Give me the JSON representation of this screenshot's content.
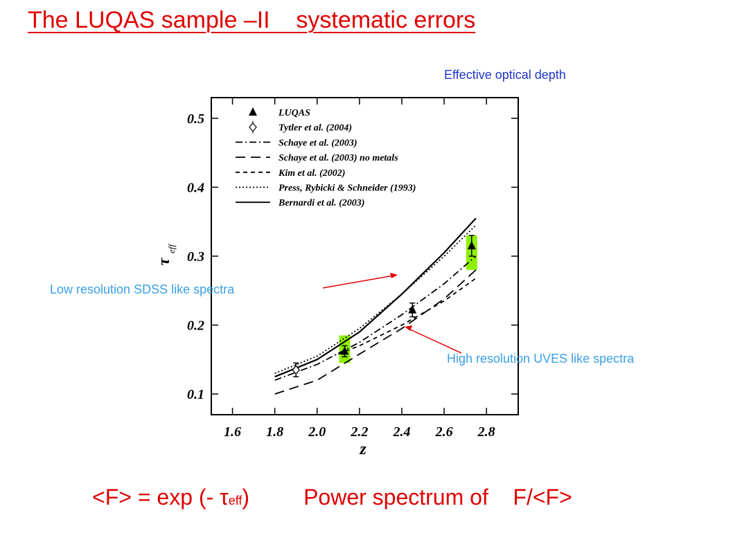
{
  "header": {
    "title": "The LUQAS sample –II    systematic errors"
  },
  "annotations": {
    "effective_depth": "Effective optical depth",
    "low_res": "Low resolution SDSS like spectra",
    "high_res": "High resolution UVES like spectra"
  },
  "footer": {
    "formula_part1": "<F> = exp (- ",
    "tau": "τ",
    "sub_eff": "eff",
    "formula_part2": ")",
    "power_spectrum": "Power spectrum of    F/<F>"
  },
  "colors": {
    "title_red": "#e00000",
    "blue_label": "#1f35c8",
    "cyan_label": "#3aa0e8",
    "highlight_green": "#8ef000",
    "arrow_red": "#e00000"
  },
  "chart_data": {
    "type": "line",
    "xlabel": "z",
    "ylabel": "τ_eff",
    "xlim": [
      1.5,
      2.95
    ],
    "ylim": [
      0.07,
      0.53
    ],
    "xticks": [
      "1.6",
      "1.8",
      "2.0",
      "2.2",
      "2.4",
      "2.6",
      "2.8"
    ],
    "xtick_values": [
      1.6,
      1.8,
      2.0,
      2.2,
      2.4,
      2.6,
      2.8
    ],
    "yticks": [
      "0.1",
      "0.2",
      "0.3",
      "0.4",
      "0.5"
    ],
    "ytick_values": [
      0.1,
      0.2,
      0.3,
      0.4,
      0.5
    ],
    "legend_position": "top-left",
    "legend": [
      {
        "label": "LUQAS",
        "style": "triangle"
      },
      {
        "label": "Tytler et al. (2004)",
        "style": "diamond"
      },
      {
        "label": "Schaye et al. (2003)",
        "style": "dashdot"
      },
      {
        "label": "Schaye et al. (2003) no metals",
        "style": "longdash"
      },
      {
        "label": "Kim et al. (2002)",
        "style": "dash"
      },
      {
        "label": "Press, Rybicki & Schneider (1993)",
        "style": "dot"
      },
      {
        "label": "Bernardi et al. (2003)",
        "style": "solid"
      }
    ],
    "series": [
      {
        "name": "Bernardi et al. (2003)",
        "style": "solid",
        "x": [
          1.8,
          2.0,
          2.2,
          2.4,
          2.6,
          2.75
        ],
        "y": [
          0.125,
          0.15,
          0.19,
          0.245,
          0.305,
          0.355
        ]
      },
      {
        "name": "Press, Rybicki & Schneider (1993)",
        "style": "dot",
        "x": [
          1.8,
          2.0,
          2.2,
          2.4,
          2.6,
          2.75
        ],
        "y": [
          0.13,
          0.155,
          0.195,
          0.245,
          0.3,
          0.345
        ]
      },
      {
        "name": "Schaye et al. (2003)",
        "style": "dashdot",
        "x": [
          1.8,
          2.0,
          2.2,
          2.4,
          2.6,
          2.75
        ],
        "y": [
          0.12,
          0.143,
          0.175,
          0.215,
          0.26,
          0.3
        ]
      },
      {
        "name": "Schaye et al. (2003) no metals",
        "style": "longdash",
        "x": [
          1.8,
          2.0,
          2.2,
          2.4,
          2.6,
          2.75
        ],
        "y": [
          0.1,
          0.12,
          0.158,
          0.195,
          0.238,
          0.28
        ]
      },
      {
        "name": "Kim et al. (2002)",
        "style": "dash",
        "x": [
          2.1,
          2.2,
          2.4,
          2.6,
          2.75
        ],
        "y": [
          0.158,
          0.17,
          0.2,
          0.235,
          0.268
        ]
      }
    ],
    "points": [
      {
        "name": "LUQAS",
        "marker": "triangle",
        "x": [
          2.13,
          2.45,
          2.73
        ],
        "y": [
          0.162,
          0.222,
          0.315
        ],
        "err": [
          0.008,
          0.01,
          0.015
        ]
      },
      {
        "name": "Tytler et al. (2004)",
        "marker": "diamond",
        "x": [
          1.9
        ],
        "y": [
          0.135
        ],
        "err": [
          0.01
        ]
      }
    ],
    "highlights": [
      {
        "x": 2.13,
        "y_low": 0.145,
        "y_high": 0.185
      },
      {
        "x": 2.73,
        "y_low": 0.28,
        "y_high": 0.33
      }
    ]
  }
}
